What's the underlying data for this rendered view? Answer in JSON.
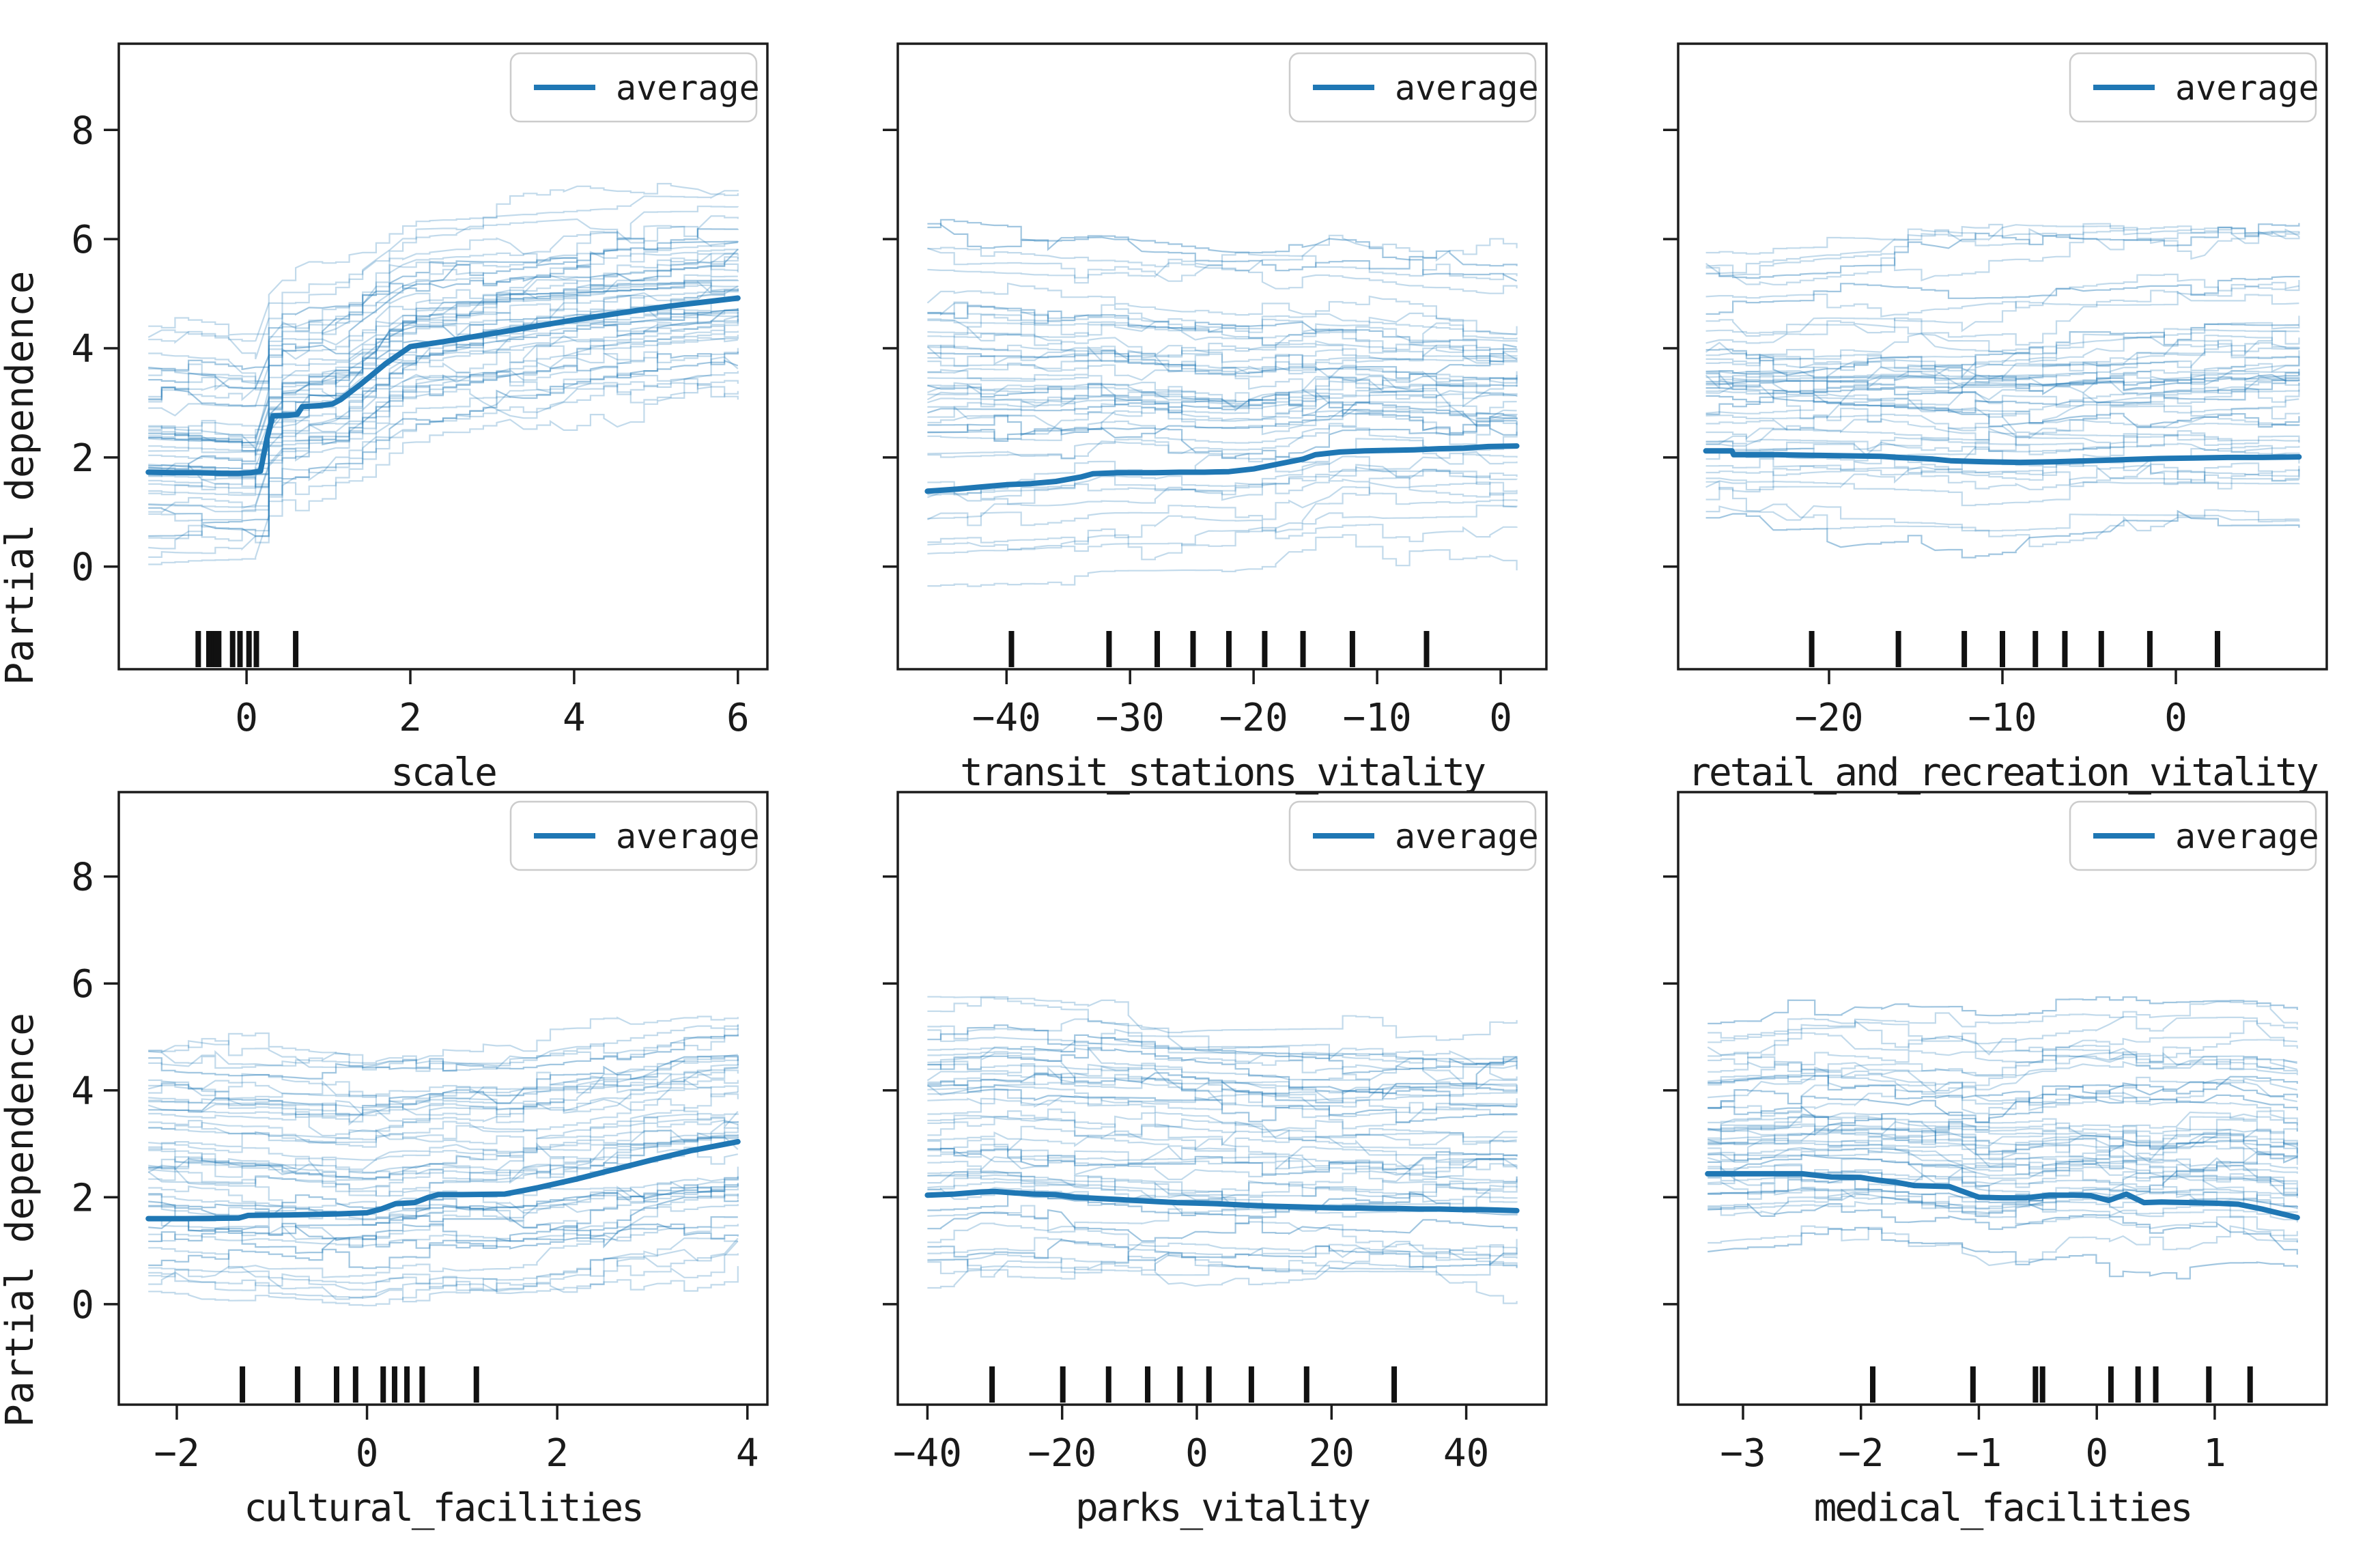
{
  "colors": {
    "average_line": "#1f77b4",
    "ice_line": "#1f77b4",
    "ice_opacity": 0.27,
    "axis": "#1c1c1c",
    "text": "#1a1a1a",
    "rug": "#111111",
    "legend_border": "#cccccc",
    "legend_fill": "#ffffff",
    "background": "#ffffff"
  },
  "chart_data": [
    {
      "type": "line",
      "id": "scale",
      "xlabel": "scale",
      "ylabel": "Partial dependence",
      "legend": "average",
      "x_ticks": [
        0,
        2,
        4,
        6
      ],
      "y_ticks": [
        0,
        2,
        4,
        6,
        8
      ],
      "xlim": [
        -1.56,
        6.36
      ],
      "ylim": [
        -1.88,
        9.58
      ],
      "show_y_tick_labels": true,
      "average": [
        [
          -1.2,
          1.73
        ],
        [
          -0.9,
          1.72
        ],
        [
          -0.6,
          1.72
        ],
        [
          -0.3,
          1.71
        ],
        [
          -0.1,
          1.71
        ],
        [
          0.05,
          1.72
        ],
        [
          0.17,
          1.75
        ],
        [
          0.25,
          2.35
        ],
        [
          0.32,
          2.76
        ],
        [
          0.5,
          2.77
        ],
        [
          0.62,
          2.79
        ],
        [
          0.68,
          2.93
        ],
        [
          0.9,
          2.95
        ],
        [
          1.05,
          2.98
        ],
        [
          1.15,
          3.06
        ],
        [
          1.4,
          3.35
        ],
        [
          1.7,
          3.72
        ],
        [
          2.0,
          4.03
        ],
        [
          2.4,
          4.12
        ],
        [
          2.8,
          4.22
        ],
        [
          3.2,
          4.32
        ],
        [
          3.6,
          4.42
        ],
        [
          4.0,
          4.52
        ],
        [
          4.4,
          4.61
        ],
        [
          4.8,
          4.7
        ],
        [
          5.2,
          4.78
        ],
        [
          5.6,
          4.85
        ],
        [
          6.0,
          4.92
        ]
      ],
      "ice": {
        "count": 48,
        "left_range": [
          0.15,
          4.55
        ],
        "right_range": [
          3.4,
          6.75
        ],
        "seed": 11
      },
      "rug": [
        -0.59,
        -0.46,
        -0.43,
        -0.4,
        -0.37,
        -0.34,
        -0.17,
        -0.08,
        0.03,
        0.12,
        0.6
      ]
    },
    {
      "type": "line",
      "id": "transit_stations_vitality",
      "xlabel": "transit_stations_vitality",
      "ylabel": "",
      "legend": "average",
      "x_ticks": [
        -40,
        -30,
        -20,
        -10,
        0
      ],
      "y_ticks": [
        0,
        2,
        4,
        6,
        8
      ],
      "xlim": [
        -48.8,
        3.7
      ],
      "ylim": [
        -1.88,
        9.58
      ],
      "show_y_tick_labels": false,
      "average": [
        [
          -46.4,
          1.38
        ],
        [
          -44,
          1.42
        ],
        [
          -42,
          1.46
        ],
        [
          -40,
          1.5
        ],
        [
          -38,
          1.52
        ],
        [
          -36,
          1.56
        ],
        [
          -34,
          1.64
        ],
        [
          -33,
          1.7
        ],
        [
          -31,
          1.72
        ],
        [
          -28,
          1.72
        ],
        [
          -26,
          1.73
        ],
        [
          -24,
          1.73
        ],
        [
          -22,
          1.74
        ],
        [
          -20,
          1.79
        ],
        [
          -18,
          1.88
        ],
        [
          -16,
          1.97
        ],
        [
          -15,
          2.05
        ],
        [
          -13,
          2.1
        ],
        [
          -11,
          2.12
        ],
        [
          -9,
          2.13
        ],
        [
          -7,
          2.14
        ],
        [
          -5,
          2.16
        ],
        [
          -3,
          2.17
        ],
        [
          -1,
          2.2
        ],
        [
          1.3,
          2.21
        ]
      ],
      "ice": {
        "count": 48,
        "left_range": [
          -0.45,
          6.35
        ],
        "right_range": [
          0.3,
          5.6
        ],
        "seed": 22
      },
      "rug": [
        -39.6,
        -31.7,
        -27.8,
        -24.9,
        -22.0,
        -19.1,
        -16.0,
        -12.0,
        -6.0
      ]
    },
    {
      "type": "line",
      "id": "retail_and_recreation_vitality",
      "xlabel": "retail_and_recreation_vitality",
      "ylabel": "",
      "legend": "average",
      "x_ticks": [
        -20,
        -10,
        0
      ],
      "y_ticks": [
        0,
        2,
        4,
        6,
        8
      ],
      "xlim": [
        -28.7,
        8.7
      ],
      "ylim": [
        -1.88,
        9.58
      ],
      "show_y_tick_labels": false,
      "average": [
        [
          -27.1,
          2.12
        ],
        [
          -25.6,
          2.12
        ],
        [
          -25.5,
          2.05
        ],
        [
          -23,
          2.05
        ],
        [
          -21,
          2.04
        ],
        [
          -19,
          2.03
        ],
        [
          -17,
          2.02
        ],
        [
          -16,
          2.0
        ],
        [
          -14,
          1.97
        ],
        [
          -13,
          1.94
        ],
        [
          -11,
          1.92
        ],
        [
          -9,
          1.91
        ],
        [
          -7,
          1.92
        ],
        [
          -5,
          1.94
        ],
        [
          -3,
          1.96
        ],
        [
          -1,
          1.98
        ],
        [
          1,
          1.99
        ],
        [
          3,
          2.0
        ],
        [
          5,
          2.0
        ],
        [
          7.1,
          2.01
        ]
      ],
      "ice": {
        "count": 48,
        "left_range": [
          0.75,
          5.8
        ],
        "right_range": [
          0.6,
          6.4
        ],
        "seed": 33
      },
      "rug": [
        -21.0,
        -16.0,
        -12.2,
        -10.0,
        -8.1,
        -6.4,
        -4.3,
        -1.5,
        2.4
      ]
    },
    {
      "type": "line",
      "id": "cultural_facilities",
      "xlabel": "cultural_facilities",
      "ylabel": "Partial dependence",
      "legend": "average",
      "x_ticks": [
        -2,
        0,
        2,
        4
      ],
      "y_ticks": [
        0,
        2,
        4,
        6,
        8
      ],
      "xlim": [
        -2.61,
        4.21
      ],
      "ylim": [
        -1.88,
        9.58
      ],
      "show_y_tick_labels": true,
      "average": [
        [
          -2.3,
          1.6
        ],
        [
          -1.9,
          1.6
        ],
        [
          -1.35,
          1.61
        ],
        [
          -1.25,
          1.66
        ],
        [
          -0.8,
          1.67
        ],
        [
          -0.3,
          1.69
        ],
        [
          0.0,
          1.71
        ],
        [
          0.15,
          1.78
        ],
        [
          0.3,
          1.88
        ],
        [
          0.5,
          1.9
        ],
        [
          0.65,
          2.0
        ],
        [
          0.75,
          2.05
        ],
        [
          1.0,
          2.05
        ],
        [
          1.45,
          2.06
        ],
        [
          1.8,
          2.18
        ],
        [
          2.2,
          2.34
        ],
        [
          2.6,
          2.52
        ],
        [
          3.0,
          2.7
        ],
        [
          3.4,
          2.87
        ],
        [
          3.9,
          3.04
        ]
      ],
      "ice": {
        "count": 48,
        "left_range": [
          0.2,
          4.8
        ],
        "right_range": [
          0.7,
          5.4
        ],
        "seed": 44
      },
      "rug": [
        -1.31,
        -0.73,
        -0.32,
        -0.12,
        0.17,
        0.29,
        0.42,
        0.58,
        1.15
      ]
    },
    {
      "type": "line",
      "id": "parks_vitality",
      "xlabel": "parks_vitality",
      "ylabel": "",
      "legend": "average",
      "x_ticks": [
        -40,
        -20,
        0,
        20,
        40
      ],
      "y_ticks": [
        0,
        2,
        4,
        6,
        8
      ],
      "xlim": [
        -44.4,
        51.9
      ],
      "ylim": [
        -1.88,
        9.58
      ],
      "show_y_tick_labels": false,
      "average": [
        [
          -40,
          2.04
        ],
        [
          -36,
          2.06
        ],
        [
          -32,
          2.1
        ],
        [
          -30,
          2.11
        ],
        [
          -27,
          2.08
        ],
        [
          -24,
          2.06
        ],
        [
          -21,
          2.05
        ],
        [
          -18,
          2.0
        ],
        [
          -15,
          1.98
        ],
        [
          -12,
          1.96
        ],
        [
          -9,
          1.94
        ],
        [
          -6,
          1.92
        ],
        [
          -3,
          1.9
        ],
        [
          0,
          1.89
        ],
        [
          3,
          1.88
        ],
        [
          6,
          1.86
        ],
        [
          9,
          1.84
        ],
        [
          12,
          1.83
        ],
        [
          15,
          1.82
        ],
        [
          18,
          1.81
        ],
        [
          21,
          1.8
        ],
        [
          24,
          1.8
        ],
        [
          27,
          1.79
        ],
        [
          30,
          1.79
        ],
        [
          33,
          1.78
        ],
        [
          36,
          1.78
        ],
        [
          39,
          1.77
        ],
        [
          42,
          1.77
        ],
        [
          45,
          1.76
        ],
        [
          47.5,
          1.75
        ]
      ],
      "ice": {
        "count": 48,
        "left_range": [
          0.45,
          5.6
        ],
        "right_range": [
          0.3,
          5.2
        ],
        "seed": 55
      },
      "rug": [
        -30.4,
        -19.9,
        -13.1,
        -7.3,
        -2.5,
        1.8,
        8.1,
        16.3,
        29.3
      ]
    },
    {
      "type": "line",
      "id": "medical_facilities",
      "xlabel": "medical_facilities",
      "ylabel": "",
      "legend": "average",
      "x_ticks": [
        -3,
        -2,
        -1,
        0,
        1
      ],
      "y_ticks": [
        0,
        2,
        4,
        6,
        8
      ],
      "xlim": [
        -3.55,
        1.95
      ],
      "ylim": [
        -1.88,
        9.58
      ],
      "show_y_tick_labels": false,
      "average": [
        [
          -3.3,
          2.44
        ],
        [
          -2.9,
          2.44
        ],
        [
          -2.5,
          2.44
        ],
        [
          -2.25,
          2.38
        ],
        [
          -2.0,
          2.37
        ],
        [
          -1.85,
          2.32
        ],
        [
          -1.7,
          2.28
        ],
        [
          -1.55,
          2.22
        ],
        [
          -1.4,
          2.21
        ],
        [
          -1.25,
          2.2
        ],
        [
          -1.1,
          2.08
        ],
        [
          -1.0,
          2.0
        ],
        [
          -0.8,
          1.99
        ],
        [
          -0.6,
          1.99
        ],
        [
          -0.4,
          2.04
        ],
        [
          -0.2,
          2.04
        ],
        [
          -0.05,
          2.03
        ],
        [
          0.1,
          1.94
        ],
        [
          0.25,
          2.06
        ],
        [
          0.4,
          1.9
        ],
        [
          0.55,
          1.91
        ],
        [
          0.8,
          1.9
        ],
        [
          1.0,
          1.89
        ],
        [
          1.2,
          1.87
        ],
        [
          1.4,
          1.78
        ],
        [
          1.55,
          1.7
        ],
        [
          1.7,
          1.62
        ]
      ],
      "ice": {
        "count": 48,
        "left_range": [
          1.15,
          5.3
        ],
        "right_range": [
          0.75,
          5.5
        ],
        "seed": 66
      },
      "rug": [
        -1.9,
        -1.05,
        -0.52,
        -0.46,
        0.12,
        0.35,
        0.5,
        0.95,
        1.3
      ]
    }
  ]
}
